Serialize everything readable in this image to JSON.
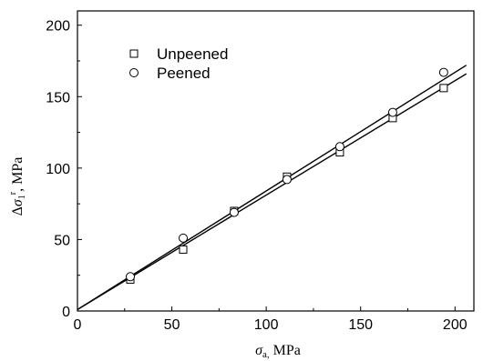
{
  "chart_data": {
    "type": "scatter",
    "xlabel": {
      "symbol": "σ",
      "sub": "a,",
      "unit": " MPa"
    },
    "ylabel": {
      "prefix": "Δ",
      "symbol": "σ",
      "sub": "1",
      "sup": "r",
      "unit": ", MPa"
    },
    "xlim": [
      0,
      210
    ],
    "ylim": [
      0,
      210
    ],
    "xticks": [
      0,
      50,
      100,
      150,
      200
    ],
    "yticks": [
      0,
      50,
      100,
      150,
      200
    ],
    "grid": false,
    "legend_position": "top-left",
    "series": [
      {
        "name": "Unpeened",
        "marker": "square",
        "x": [
          28,
          56,
          83,
          111,
          139,
          167,
          194
        ],
        "y": [
          22,
          43,
          70,
          94,
          111,
          135,
          156
        ],
        "fit_line": {
          "x": [
            0,
            206
          ],
          "y": [
            1,
            166
          ]
        }
      },
      {
        "name": "Peened",
        "marker": "circle",
        "x": [
          28,
          56,
          83,
          111,
          139,
          167,
          194
        ],
        "y": [
          24,
          51,
          69,
          92,
          115,
          139,
          167
        ],
        "fit_line": {
          "x": [
            0,
            206
          ],
          "y": [
            1,
            172
          ]
        }
      }
    ]
  }
}
